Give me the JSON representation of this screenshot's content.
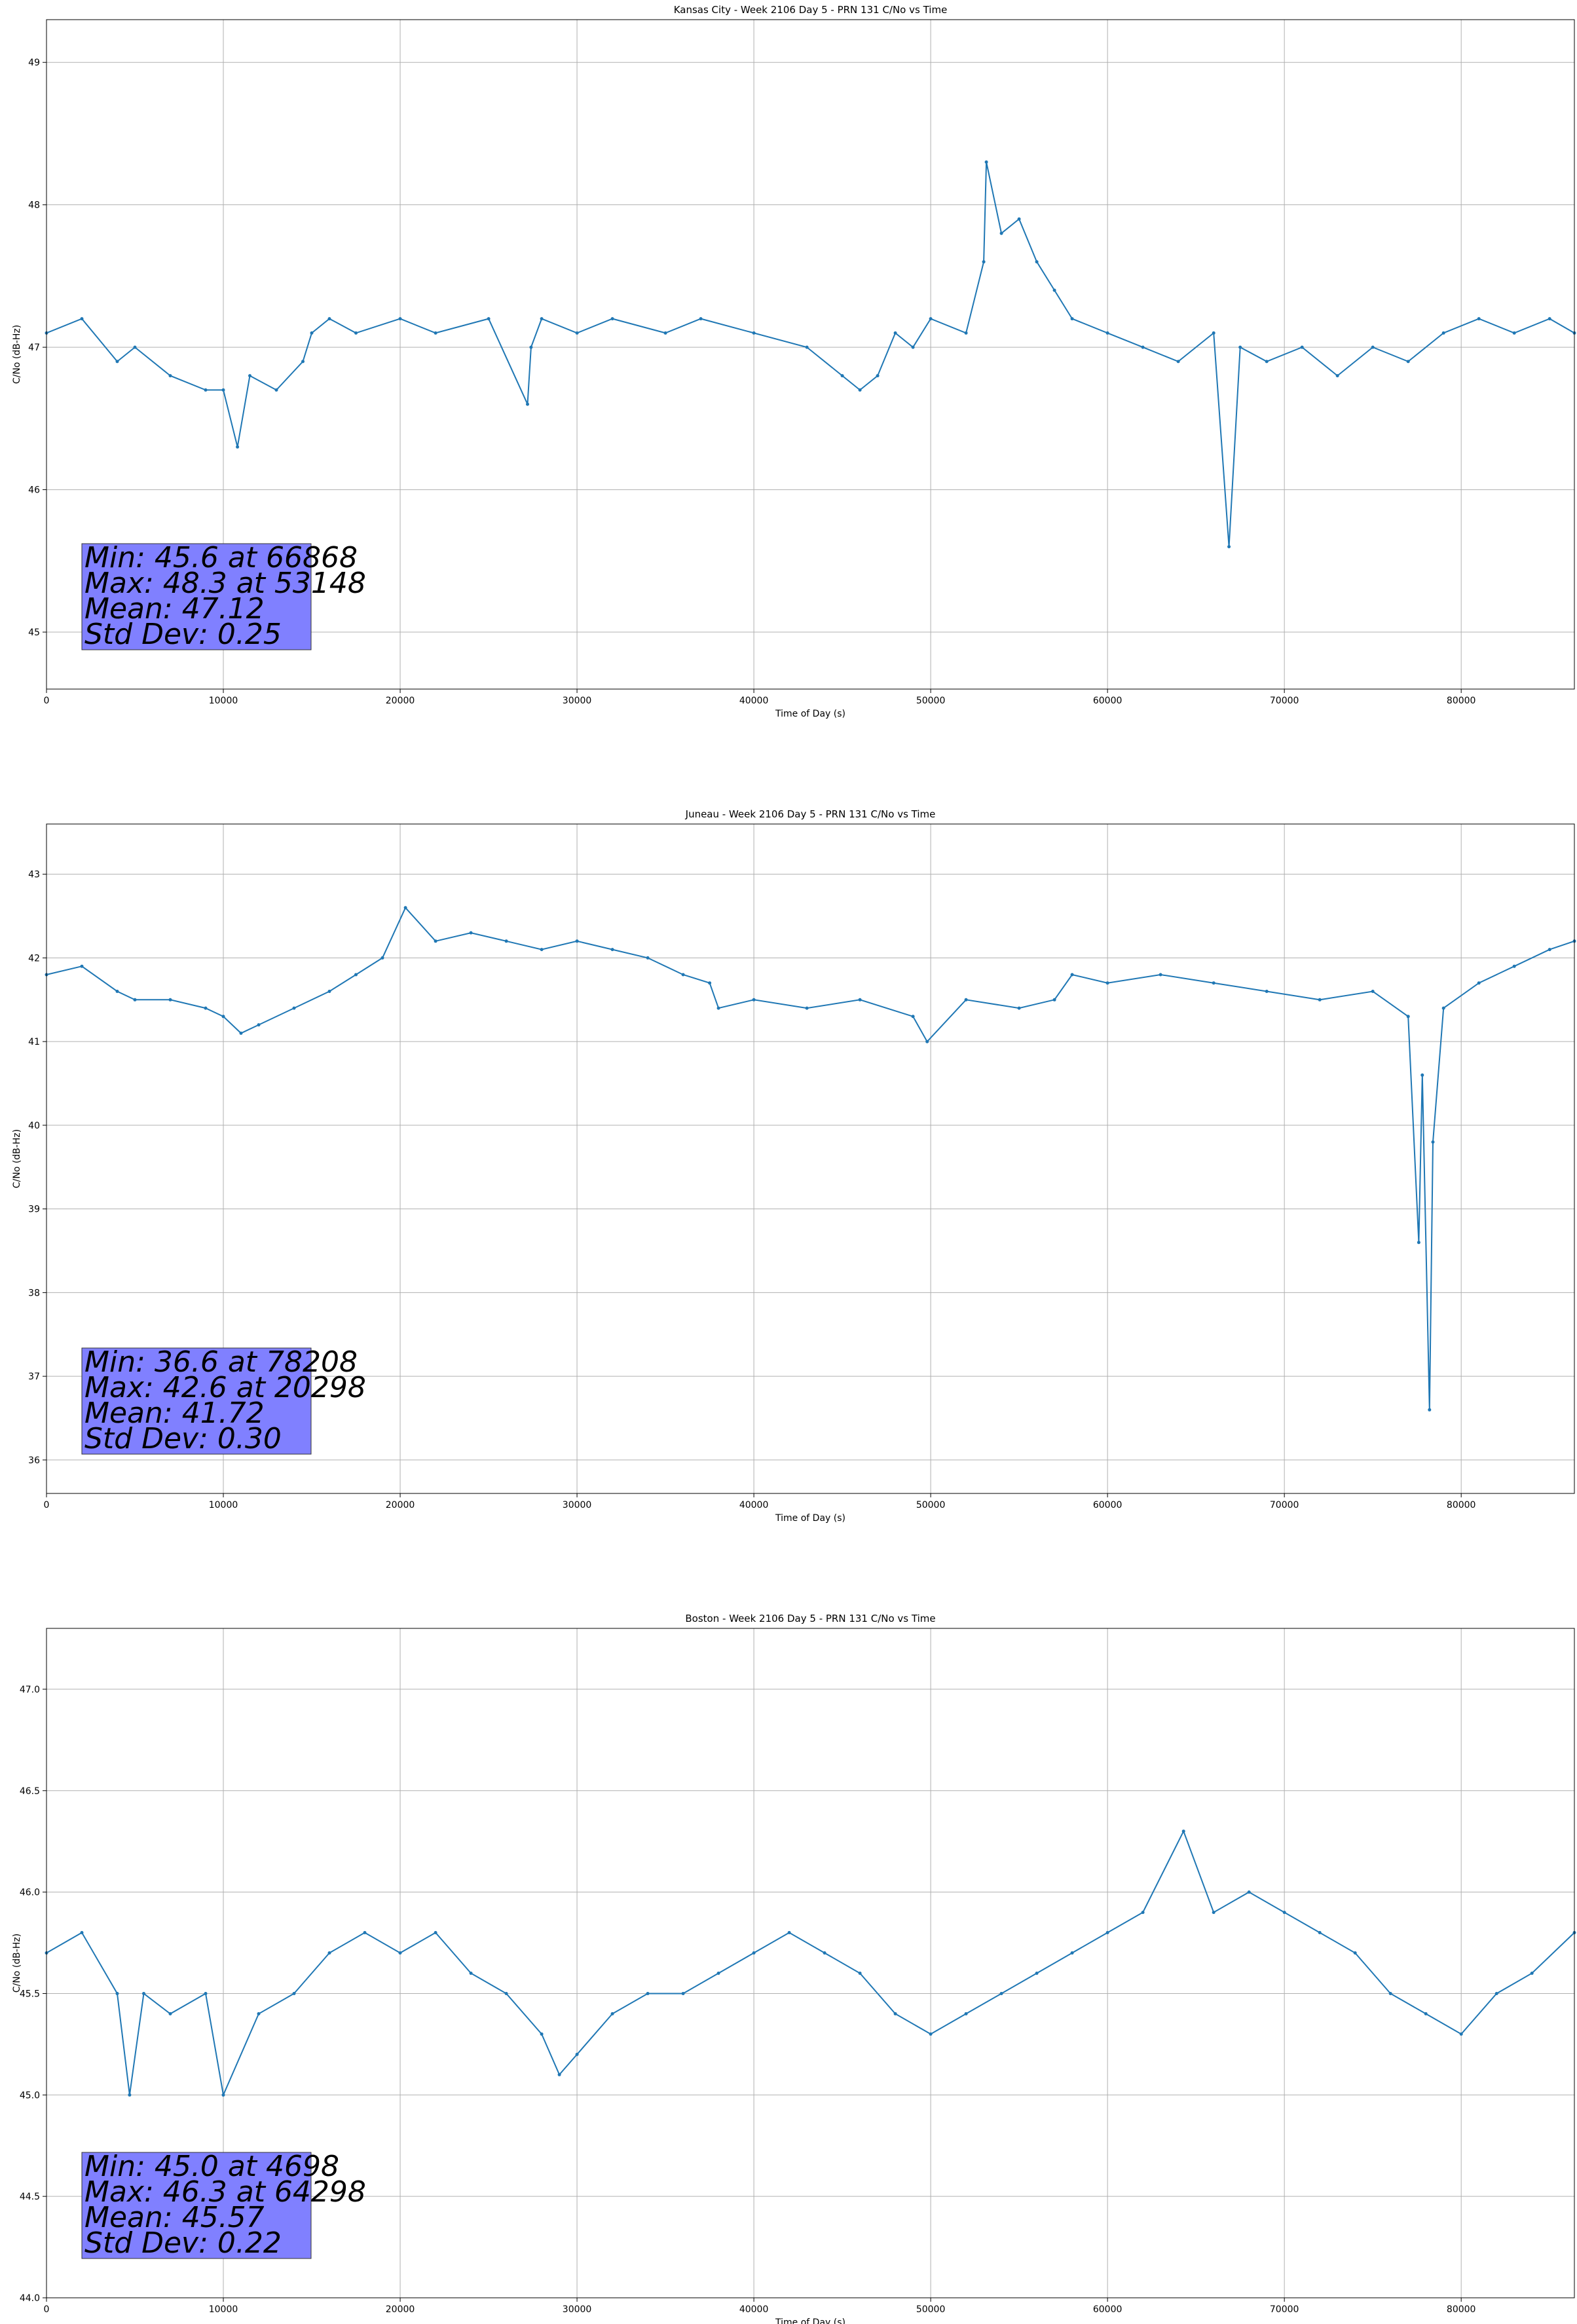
{
  "chart_data": [
    {
      "type": "line",
      "title": "Kansas City - Week 2106 Day 5 - PRN 131 C/No vs Time",
      "xlabel": "Time of Day (s)",
      "ylabel": "C/No (dB-Hz)",
      "xlim": [
        0,
        86400
      ],
      "ylim": [
        44.6,
        49.3
      ],
      "xticks": [
        0,
        10000,
        20000,
        30000,
        40000,
        50000,
        60000,
        70000,
        80000
      ],
      "yticks": [
        45,
        46,
        47,
        48,
        49
      ],
      "grid": true,
      "series_color": "#1f77b4",
      "series": [
        {
          "x": [
            0,
            2000,
            4000,
            5000,
            7000,
            9000,
            10000,
            10800,
            11500,
            13000,
            14500,
            15000,
            16000,
            17500,
            20000,
            22000,
            25000,
            27200,
            27400,
            28000,
            30000,
            32000,
            35000,
            37000,
            40000,
            43000,
            45000,
            46000,
            47000,
            48000,
            49000,
            50000,
            52000,
            53000,
            53148,
            54000,
            55000,
            56000,
            57000,
            58000,
            60000,
            62000,
            64000,
            66000,
            66868,
            67500,
            69000,
            71000,
            73000,
            75000,
            77000,
            79000,
            81000,
            83000,
            85000,
            86400
          ],
          "y": [
            47.1,
            47.2,
            46.9,
            47.0,
            46.8,
            46.7,
            46.7,
            46.3,
            46.8,
            46.7,
            46.9,
            47.1,
            47.2,
            47.1,
            47.2,
            47.1,
            47.2,
            46.6,
            47.0,
            47.2,
            47.1,
            47.2,
            47.1,
            47.2,
            47.1,
            47.0,
            46.8,
            46.7,
            46.8,
            47.1,
            47.0,
            47.2,
            47.1,
            47.6,
            48.3,
            47.8,
            47.9,
            47.6,
            47.4,
            47.2,
            47.1,
            47.0,
            46.9,
            47.1,
            45.6,
            47.0,
            46.9,
            47.0,
            46.8,
            47.0,
            46.9,
            47.1,
            47.2,
            47.1,
            47.2,
            47.1
          ]
        }
      ],
      "stats": {
        "line1": "Min: 45.6 at 66868",
        "line2": "Max: 48.3 at 53148",
        "line3": "Mean: 47.12",
        "line4": "Std Dev: 0.25",
        "box_color": "#8080ff"
      }
    },
    {
      "type": "line",
      "title": "Juneau - Week 2106 Day 5 - PRN 131 C/No vs Time",
      "xlabel": "Time of Day (s)",
      "ylabel": "C/No (dB-Hz)",
      "xlim": [
        0,
        86400
      ],
      "ylim": [
        35.6,
        43.6
      ],
      "xticks": [
        0,
        10000,
        20000,
        30000,
        40000,
        50000,
        60000,
        70000,
        80000
      ],
      "yticks": [
        36,
        37,
        38,
        39,
        40,
        41,
        42,
        43
      ],
      "grid": true,
      "series_color": "#1f77b4",
      "series": [
        {
          "x": [
            0,
            2000,
            4000,
            5000,
            7000,
            9000,
            10000,
            11000,
            12000,
            14000,
            16000,
            17500,
            19000,
            20298,
            22000,
            24000,
            26000,
            28000,
            30000,
            32000,
            34000,
            36000,
            37500,
            38000,
            40000,
            43000,
            46000,
            49000,
            49800,
            52000,
            55000,
            57000,
            58000,
            60000,
            63000,
            66000,
            69000,
            72000,
            75000,
            77000,
            77600,
            77800,
            78208,
            78400,
            79000,
            81000,
            83000,
            85000,
            86400
          ],
          "y": [
            41.8,
            41.9,
            41.6,
            41.5,
            41.5,
            41.4,
            41.3,
            41.1,
            41.2,
            41.4,
            41.6,
            41.8,
            42.0,
            42.6,
            42.2,
            42.3,
            42.2,
            42.1,
            42.2,
            42.1,
            42.0,
            41.8,
            41.7,
            41.4,
            41.5,
            41.4,
            41.5,
            41.3,
            41.0,
            41.5,
            41.4,
            41.5,
            41.8,
            41.7,
            41.8,
            41.7,
            41.6,
            41.5,
            41.6,
            41.3,
            38.6,
            40.6,
            36.6,
            39.8,
            41.4,
            41.7,
            41.9,
            42.1,
            42.2
          ]
        }
      ],
      "stats": {
        "line1": "Min: 36.6 at 78208",
        "line2": "Max: 42.6 at 20298",
        "line3": "Mean: 41.72",
        "line4": "Std Dev: 0.30",
        "box_color": "#8080ff"
      }
    },
    {
      "type": "line",
      "title": "Boston - Week 2106 Day 5 - PRN 131 C/No vs Time",
      "xlabel": "Time of Day (s)",
      "ylabel": "C/No (dB-Hz)",
      "xlim": [
        0,
        86400
      ],
      "ylim": [
        44.0,
        47.3
      ],
      "xticks": [
        0,
        10000,
        20000,
        30000,
        40000,
        50000,
        60000,
        70000,
        80000
      ],
      "yticks": [
        44.0,
        44.5,
        45.0,
        45.5,
        46.0,
        46.5,
        47.0
      ],
      "grid": true,
      "series_color": "#1f77b4",
      "series": [
        {
          "x": [
            0,
            2000,
            4000,
            4698,
            5500,
            7000,
            9000,
            10000,
            12000,
            14000,
            16000,
            18000,
            20000,
            22000,
            24000,
            26000,
            28000,
            29000,
            30000,
            32000,
            34000,
            36000,
            38000,
            40000,
            42000,
            44000,
            46000,
            48000,
            50000,
            52000,
            54000,
            56000,
            58000,
            60000,
            62000,
            64298,
            66000,
            68000,
            70000,
            72000,
            74000,
            76000,
            78000,
            80000,
            82000,
            84000,
            86400
          ],
          "y": [
            45.7,
            45.8,
            45.5,
            45.0,
            45.5,
            45.4,
            45.5,
            45.0,
            45.4,
            45.5,
            45.7,
            45.8,
            45.7,
            45.8,
            45.6,
            45.5,
            45.3,
            45.1,
            45.2,
            45.4,
            45.5,
            45.5,
            45.6,
            45.7,
            45.8,
            45.7,
            45.6,
            45.4,
            45.3,
            45.4,
            45.5,
            45.6,
            45.7,
            45.8,
            45.9,
            46.3,
            45.9,
            46.0,
            45.9,
            45.8,
            45.7,
            45.5,
            45.4,
            45.3,
            45.5,
            45.6,
            45.8
          ]
        }
      ],
      "stats": {
        "line1": "Min: 45.0 at 4698",
        "line2": "Max: 46.3 at 64298",
        "line3": "Mean: 45.57",
        "line4": "Std Dev: 0.22",
        "box_color": "#8080ff"
      }
    }
  ]
}
